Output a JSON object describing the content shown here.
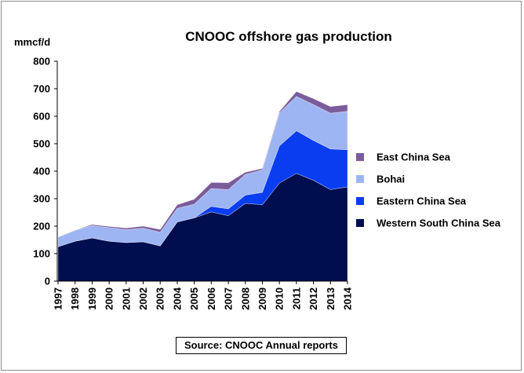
{
  "chart_data": {
    "type": "area",
    "stacked": true,
    "title": "CNOOC offshore gas production",
    "ylabel": "mmcf/d",
    "xlabel": "",
    "ylim": [
      0,
      800
    ],
    "yticks": [
      0,
      100,
      200,
      300,
      400,
      500,
      600,
      700,
      800
    ],
    "grid": false,
    "legend_position": "right",
    "categories": [
      "1997",
      "1998",
      "1999",
      "2000",
      "2001",
      "2002",
      "2003",
      "2004",
      "2005",
      "2006",
      "2007",
      "2008",
      "2009",
      "2010",
      "2011",
      "2012",
      "2013",
      "2014"
    ],
    "series": [
      {
        "name": "Western South China Sea",
        "color": "#000d4f",
        "values": [
          125,
          145,
          157,
          145,
          140,
          143,
          128,
          215,
          230,
          252,
          238,
          283,
          278,
          357,
          392,
          367,
          333,
          343
        ]
      },
      {
        "name": "Eastern China Sea",
        "color": "#0a3cf0",
        "values": [
          0,
          0,
          0,
          0,
          0,
          0,
          0,
          0,
          0,
          20,
          25,
          30,
          45,
          135,
          155,
          145,
          148,
          135
        ]
      },
      {
        "name": "Bohai",
        "color": "#9db5f2",
        "values": [
          35,
          40,
          45,
          50,
          47,
          50,
          50,
          50,
          50,
          65,
          70,
          75,
          82,
          120,
          125,
          130,
          130,
          140
        ]
      },
      {
        "name": "East China Sea",
        "color": "#7b5c9b",
        "values": [
          0,
          0,
          4,
          4,
          6,
          7,
          10,
          13,
          18,
          22,
          25,
          8,
          5,
          5,
          18,
          22,
          24,
          24
        ]
      }
    ],
    "legend_order": [
      "East China Sea",
      "Bohai",
      "Eastern China Sea",
      "Western South China Sea"
    ],
    "source": "Source: CNOOC Annual reports"
  }
}
